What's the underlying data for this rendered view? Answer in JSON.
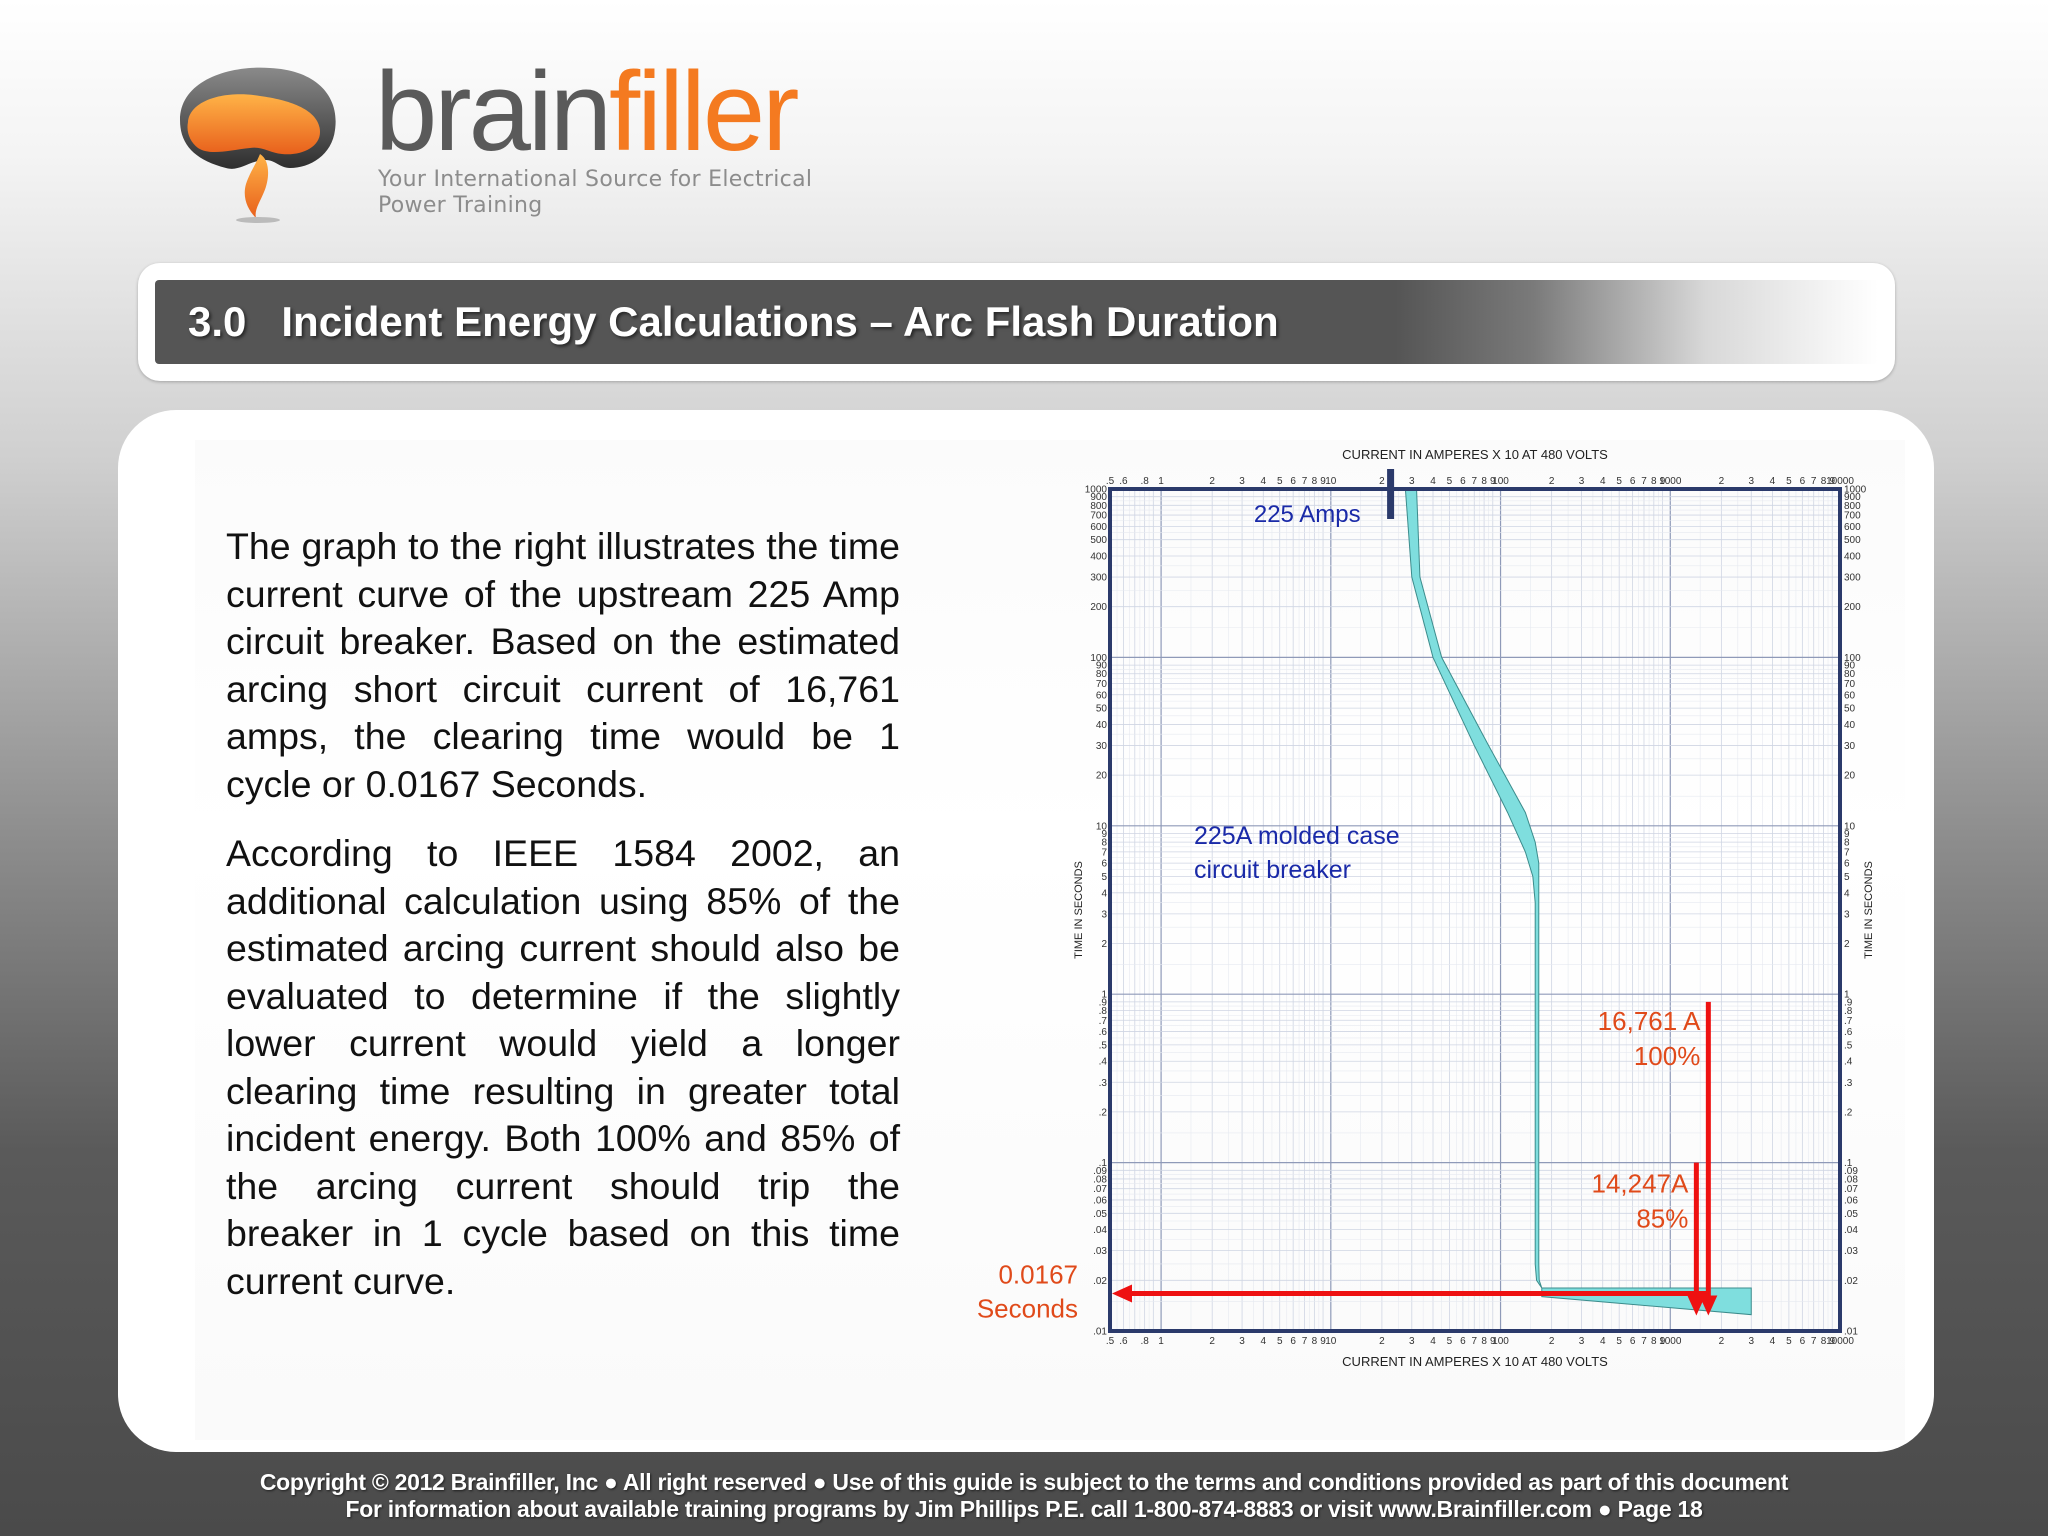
{
  "header": {
    "brand_prefix": "brain",
    "brand_suffix": "filler",
    "tagline": "Your International Source for Electrical Power Training",
    "accent_color": "#f47a20"
  },
  "title": {
    "text": "3.0   Incident Energy Calculations – Arc Flash Duration"
  },
  "body": {
    "paragraph1": "The graph to the right illustrates the time current curve of the upstream 225 Amp circuit breaker.  Based on the estimated arcing short circuit current of 16,761 amps, the clearing time would be 1 cycle or 0.0167 Seconds.",
    "paragraph2": "According to IEEE 1584 2002, an additional calculation using 85% of the estimated arcing current should also be evaluated to determine if the slightly lower current would yield a longer clearing time resulting in greater total incident energy.  Both 100% and 85% of the arcing current should trip the breaker in 1 cycle based on this time current curve."
  },
  "chart_data": {
    "type": "line",
    "title": "",
    "xlabel": "CURRENT IN AMPERES X 10 AT 480 VOLTS",
    "ylabel": "TIME IN SECONDS",
    "x_scale": "log",
    "y_scale": "log",
    "xlim": [
      0.5,
      10000
    ],
    "ylim": [
      0.01,
      1000
    ],
    "grid": true,
    "x_tick_labels": [
      ".5",
      ".6",
      ".8",
      "1",
      "2",
      "3",
      "4",
      "5",
      "6",
      "7",
      "8",
      "9",
      "10",
      "2",
      "3",
      "4",
      "5",
      "6",
      "7",
      "8",
      "9",
      "100",
      "2",
      "3",
      "4",
      "5",
      "6",
      "7",
      "8",
      "9",
      "1000",
      "2",
      "3",
      "4",
      "5",
      "6",
      "7",
      "8",
      "9",
      "10000"
    ],
    "y_tick_labels": [
      ".01",
      ".02",
      ".03",
      ".04",
      ".05",
      ".06",
      ".07",
      ".08",
      ".09",
      ".1",
      ".2",
      ".3",
      ".4",
      ".5",
      ".6",
      ".7",
      ".8",
      ".9",
      "1",
      "2",
      "3",
      "4",
      "5",
      "6",
      "7",
      "8",
      "9",
      "10",
      "20",
      "30",
      "40",
      "50",
      "60",
      "70",
      "80",
      "90",
      "100",
      "200",
      "300",
      "400",
      "500",
      "600",
      "700",
      "800",
      "900",
      "1000"
    ],
    "series": [
      {
        "name": "225A molded case circuit breaker",
        "color": "#7fdede",
        "band_left": [
          [
            27.5,
            1000
          ],
          [
            30,
            300
          ],
          [
            40,
            100
          ],
          [
            70,
            30
          ],
          [
            110,
            12
          ],
          [
            140,
            7
          ],
          [
            155,
            5
          ],
          [
            160,
            3.5
          ],
          [
            160,
            0.025
          ],
          [
            163,
            0.02
          ],
          [
            175,
            0.018
          ],
          [
            175,
            0.016
          ]
        ],
        "band_right": [
          [
            32,
            1000
          ],
          [
            33.5,
            300
          ],
          [
            45,
            100
          ],
          [
            85,
            30
          ],
          [
            140,
            12
          ],
          [
            160,
            8
          ],
          [
            168,
            6
          ],
          [
            168,
            0.025
          ],
          [
            169,
            0.02
          ],
          [
            175,
            0.018
          ],
          [
            3000,
            0.018
          ],
          [
            3000,
            0.0125
          ]
        ]
      }
    ],
    "marker": {
      "label": "225 Amps",
      "x": 22.5
    },
    "annotations": {
      "series_label_line1": "225A molded case",
      "series_label_line2": "circuit breaker",
      "a100_label_line1": "16,761 A",
      "a100_label_line2": "100%",
      "a100_x": 1676.1,
      "a100_top": 0.9,
      "a85_label_line1": "14,247A",
      "a85_label_line2": "85%",
      "a85_x": 1424.7,
      "a85_top": 0.1,
      "time_label_line1": "0.0167",
      "time_label_line2": "Seconds",
      "time_y": 0.0167,
      "arrow_color": "#ee1111",
      "label_color": "#e04a1a",
      "blue_color": "#1a2aa8",
      "frame_color": "#2b3a6b"
    }
  },
  "footer": {
    "line1": "Copyright © 2012 Brainfiller, Inc   ●    All right reserved ●    Use of this guide is subject to the terms and conditions provided as part of this document",
    "line2": "For information about available training programs by Jim Phillips P.E. call 1-800-874-8883 or visit www.Brainfiller.com  ●   Page  18"
  }
}
